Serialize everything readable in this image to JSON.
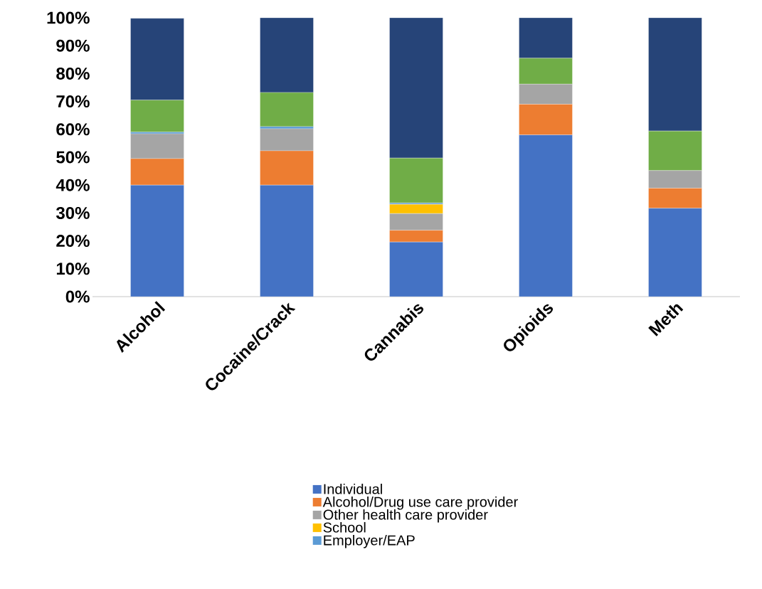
{
  "chart_data": {
    "type": "bar",
    "stacked": true,
    "categories": [
      "Alcohol",
      "Cocaine/Crack",
      "Cannabis",
      "Opioids",
      "Meth"
    ],
    "series": [
      {
        "name": "Individual",
        "color": "#4472c4",
        "values": [
          40,
          40,
          19.6,
          58,
          31.7
        ]
      },
      {
        "name": "Alcohol/Drug use care provider",
        "color": "#ed7d31",
        "values": [
          9.5,
          12.3,
          4.2,
          11,
          7.2
        ]
      },
      {
        "name": "Other health care provider",
        "color": "#a5a5a5",
        "values": [
          8.9,
          7.9,
          6.0,
          7.2,
          6.3
        ]
      },
      {
        "name": "School",
        "color": "#ffc000",
        "values": [
          null,
          0,
          3.3,
          0,
          0
        ]
      },
      {
        "name": "Employer/EAP",
        "color": "#5b9bd5",
        "values": [
          0.6,
          0.8,
          0.5,
          0,
          0
        ]
      },
      {
        "color": "#70ad47",
        "values": [
          11.5,
          12.2,
          16.1,
          9.3,
          14.2
        ]
      },
      {
        "color": "#264478",
        "values": [
          29.3,
          26.8,
          50.3,
          14.5,
          40.6
        ]
      }
    ],
    "ylim": [
      0,
      100
    ],
    "yticks": [
      {
        "value": 0,
        "label": "0%"
      },
      {
        "value": 10,
        "label": "10%"
      },
      {
        "value": 20,
        "label": "20%"
      },
      {
        "value": 30,
        "label": "30%"
      },
      {
        "value": 40,
        "label": "40%"
      },
      {
        "value": 50,
        "label": "50%"
      },
      {
        "value": 60,
        "label": "60%"
      },
      {
        "value": 70,
        "label": "70%"
      },
      {
        "value": 80,
        "label": "80%"
      },
      {
        "value": 90,
        "label": "90%"
      },
      {
        "value": 100,
        "label": "100%"
      }
    ],
    "legend": "bottom"
  }
}
